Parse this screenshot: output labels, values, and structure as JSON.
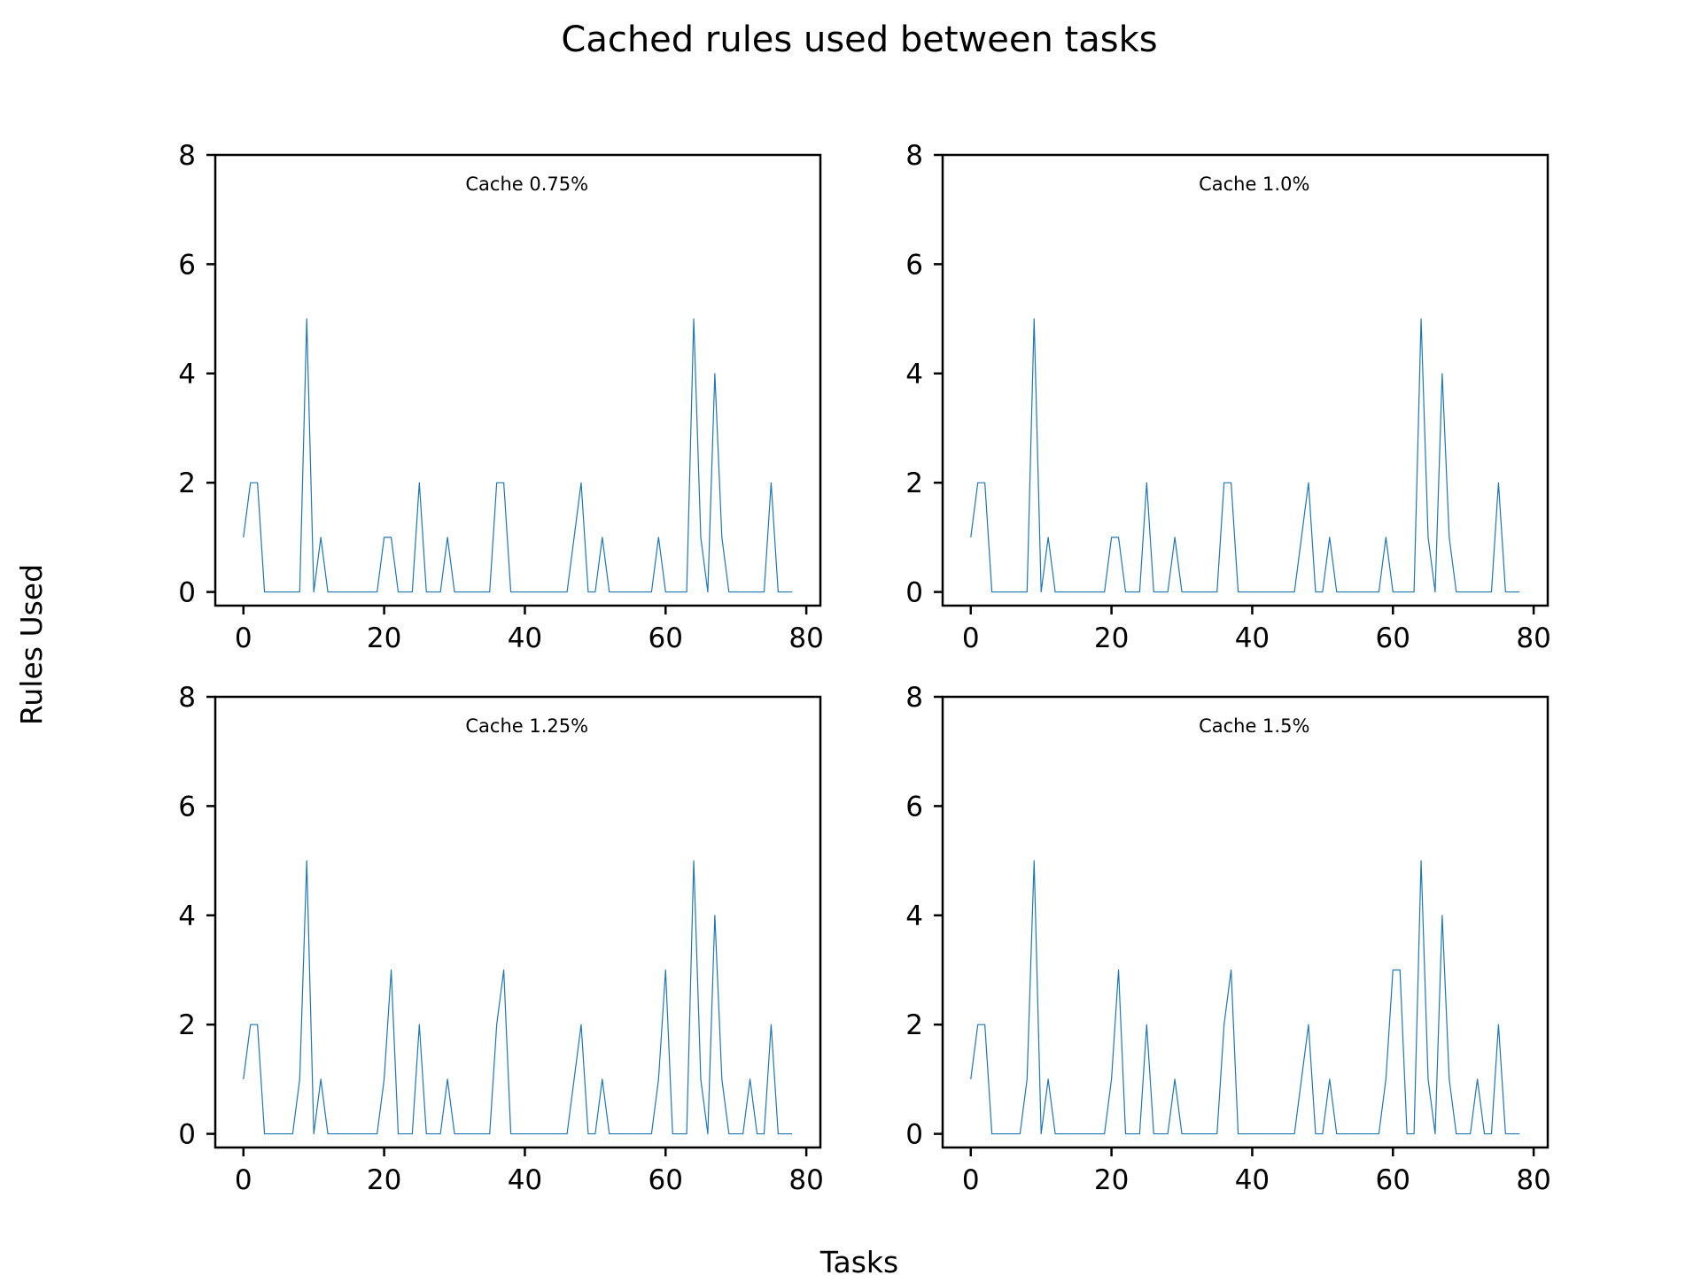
{
  "chart_data": {
    "type": "line",
    "title": "Cached rules used between tasks",
    "xlabel": "Tasks",
    "ylabel": "Rules Used",
    "line_color": "#1f77b4",
    "x_ticks": [
      0,
      20,
      40,
      60,
      80
    ],
    "y_ticks": [
      0,
      2,
      4,
      6,
      8
    ],
    "xlim": [
      -4,
      82
    ],
    "ylim": [
      -0.25,
      8
    ],
    "grid": false,
    "legend": "none",
    "x": [
      0,
      1,
      2,
      3,
      4,
      5,
      6,
      7,
      8,
      9,
      10,
      11,
      12,
      13,
      14,
      15,
      16,
      17,
      18,
      19,
      20,
      21,
      22,
      23,
      24,
      25,
      26,
      27,
      28,
      29,
      30,
      31,
      32,
      33,
      34,
      35,
      36,
      37,
      38,
      39,
      40,
      41,
      42,
      43,
      44,
      45,
      46,
      47,
      48,
      49,
      50,
      51,
      52,
      53,
      54,
      55,
      56,
      57,
      58,
      59,
      60,
      61,
      62,
      63,
      64,
      65,
      66,
      67,
      68,
      69,
      70,
      71,
      72,
      73,
      74,
      75,
      76,
      77,
      78
    ],
    "panels": [
      {
        "label": "Cache 0.75%",
        "values": [
          1,
          2,
          2,
          0,
          0,
          0,
          0,
          0,
          0,
          5,
          0,
          1,
          0,
          0,
          0,
          0,
          0,
          0,
          0,
          0,
          1,
          1,
          0,
          0,
          0,
          2,
          0,
          0,
          0,
          1,
          0,
          0,
          0,
          0,
          0,
          0,
          2,
          2,
          0,
          0,
          0,
          0,
          0,
          0,
          0,
          0,
          0,
          1,
          2,
          0,
          0,
          1,
          0,
          0,
          0,
          0,
          0,
          0,
          0,
          1,
          0,
          0,
          0,
          0,
          5,
          1,
          0,
          4,
          1,
          0,
          0,
          0,
          0,
          0,
          0,
          2,
          0,
          0,
          0
        ]
      },
      {
        "label": "Cache 1.0%",
        "values": [
          1,
          2,
          2,
          0,
          0,
          0,
          0,
          0,
          0,
          5,
          0,
          1,
          0,
          0,
          0,
          0,
          0,
          0,
          0,
          0,
          1,
          1,
          0,
          0,
          0,
          2,
          0,
          0,
          0,
          1,
          0,
          0,
          0,
          0,
          0,
          0,
          2,
          2,
          0,
          0,
          0,
          0,
          0,
          0,
          0,
          0,
          0,
          1,
          2,
          0,
          0,
          1,
          0,
          0,
          0,
          0,
          0,
          0,
          0,
          1,
          0,
          0,
          0,
          0,
          5,
          1,
          0,
          4,
          1,
          0,
          0,
          0,
          0,
          0,
          0,
          2,
          0,
          0,
          0
        ]
      },
      {
        "label": "Cache 1.25%",
        "values": [
          1,
          2,
          2,
          0,
          0,
          0,
          0,
          0,
          1,
          5,
          0,
          1,
          0,
          0,
          0,
          0,
          0,
          0,
          0,
          0,
          1,
          3,
          0,
          0,
          0,
          2,
          0,
          0,
          0,
          1,
          0,
          0,
          0,
          0,
          0,
          0,
          2,
          3,
          0,
          0,
          0,
          0,
          0,
          0,
          0,
          0,
          0,
          1,
          2,
          0,
          0,
          1,
          0,
          0,
          0,
          0,
          0,
          0,
          0,
          1,
          3,
          0,
          0,
          0,
          5,
          1,
          0,
          4,
          1,
          0,
          0,
          0,
          1,
          0,
          0,
          2,
          0,
          0,
          0
        ]
      },
      {
        "label": "Cache 1.5%",
        "values": [
          1,
          2,
          2,
          0,
          0,
          0,
          0,
          0,
          1,
          5,
          0,
          1,
          0,
          0,
          0,
          0,
          0,
          0,
          0,
          0,
          1,
          3,
          0,
          0,
          0,
          2,
          0,
          0,
          0,
          1,
          0,
          0,
          0,
          0,
          0,
          0,
          2,
          3,
          0,
          0,
          0,
          0,
          0,
          0,
          0,
          0,
          0,
          1,
          2,
          0,
          0,
          1,
          0,
          0,
          0,
          0,
          0,
          0,
          0,
          1,
          3,
          3,
          0,
          0,
          5,
          1,
          0,
          4,
          1,
          0,
          0,
          0,
          1,
          0,
          0,
          2,
          0,
          0,
          0
        ]
      }
    ]
  }
}
